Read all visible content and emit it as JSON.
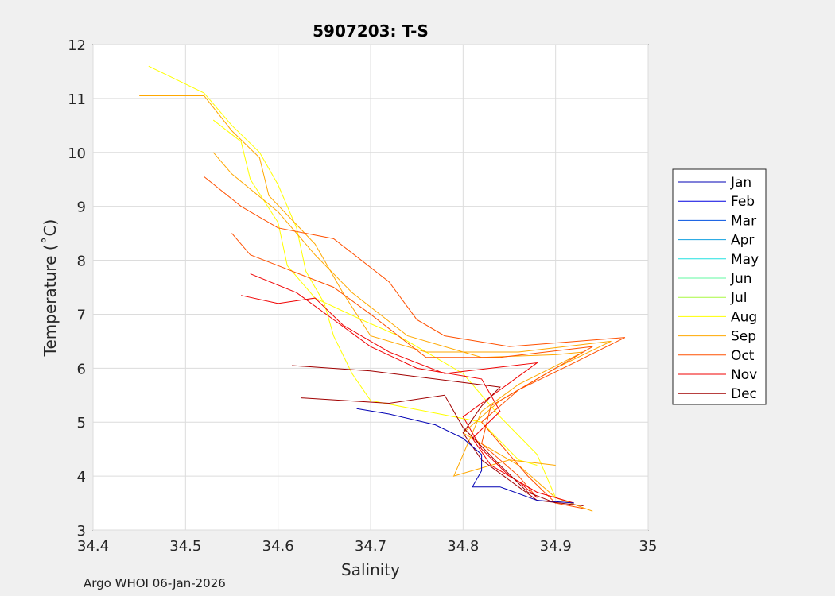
{
  "chart_data": {
    "type": "line",
    "title": "5907203:  T-S",
    "xlabel": "Salinity",
    "ylabel": "Temperature (˚C)",
    "xlim": [
      34.4,
      35
    ],
    "ylim": [
      3,
      12
    ],
    "xticks": [
      "34.4",
      "34.5",
      "34.6",
      "34.7",
      "34.8",
      "34.9",
      "35"
    ],
    "yticks": [
      "3",
      "4",
      "5",
      "6",
      "7",
      "8",
      "9",
      "10",
      "11",
      "12"
    ],
    "grid": true,
    "legend_position": "right",
    "legend": [
      {
        "name": "Jan",
        "color": "#0000b4"
      },
      {
        "name": "Feb",
        "color": "#0000e0"
      },
      {
        "name": "Mar",
        "color": "#0050e0"
      },
      {
        "name": "Apr",
        "color": "#10a0e0"
      },
      {
        "name": "May",
        "color": "#20e0e0"
      },
      {
        "name": "Jun",
        "color": "#60f8a0"
      },
      {
        "name": "Jul",
        "color": "#a8f840"
      },
      {
        "name": "Aug",
        "color": "#ffff00"
      },
      {
        "name": "Sep",
        "color": "#ffa800"
      },
      {
        "name": "Oct",
        "color": "#ff5000"
      },
      {
        "name": "Nov",
        "color": "#f00000"
      },
      {
        "name": "Dec",
        "color": "#a00000"
      }
    ],
    "series": [
      {
        "name": "Aug",
        "color": "#ffff00",
        "points": [
          [
            34.46,
            11.6
          ],
          [
            34.52,
            11.1
          ],
          [
            34.55,
            10.5
          ],
          [
            34.58,
            10.0
          ],
          [
            34.6,
            9.4
          ],
          [
            34.62,
            8.6
          ],
          [
            34.63,
            7.8
          ],
          [
            34.65,
            7.2
          ],
          [
            34.66,
            6.6
          ],
          [
            34.68,
            5.9
          ],
          [
            34.7,
            5.4
          ],
          [
            34.76,
            5.2
          ],
          [
            34.82,
            5.0
          ],
          [
            34.86,
            4.3
          ],
          [
            34.88,
            4.2
          ]
        ]
      },
      {
        "name": "Aug",
        "color": "#ffff00",
        "points": [
          [
            34.53,
            10.6
          ],
          [
            34.56,
            10.2
          ],
          [
            34.57,
            9.5
          ],
          [
            34.6,
            8.7
          ],
          [
            34.61,
            7.9
          ],
          [
            34.64,
            7.3
          ],
          [
            34.69,
            6.9
          ],
          [
            34.73,
            6.6
          ],
          [
            34.8,
            5.9
          ],
          [
            34.84,
            5.1
          ],
          [
            34.88,
            4.4
          ],
          [
            34.9,
            3.6
          ]
        ]
      },
      {
        "name": "Sep",
        "color": "#ffa800",
        "points": [
          [
            34.45,
            11.05
          ],
          [
            34.52,
            11.05
          ],
          [
            34.55,
            10.4
          ],
          [
            34.58,
            9.9
          ],
          [
            34.59,
            9.2
          ],
          [
            34.64,
            8.3
          ],
          [
            34.67,
            7.4
          ],
          [
            34.7,
            6.6
          ],
          [
            34.76,
            6.3
          ],
          [
            34.86,
            6.3
          ],
          [
            34.96,
            6.5
          ],
          [
            34.9,
            6.0
          ],
          [
            34.84,
            5.4
          ],
          [
            34.8,
            4.8
          ],
          [
            34.86,
            4.2
          ],
          [
            34.9,
            3.6
          ],
          [
            34.94,
            3.35
          ]
        ]
      },
      {
        "name": "Sep",
        "color": "#ffa800",
        "points": [
          [
            34.53,
            10.0
          ],
          [
            34.55,
            9.6
          ],
          [
            34.6,
            8.9
          ],
          [
            34.64,
            8.1
          ],
          [
            34.68,
            7.4
          ],
          [
            34.74,
            6.6
          ],
          [
            34.82,
            6.2
          ],
          [
            34.9,
            6.25
          ],
          [
            34.93,
            6.3
          ],
          [
            34.86,
            5.7
          ],
          [
            34.82,
            5.2
          ],
          [
            34.79,
            4.0
          ],
          [
            34.85,
            4.3
          ],
          [
            34.9,
            4.2
          ]
        ]
      },
      {
        "name": "Oct",
        "color": "#ff5000",
        "points": [
          [
            34.52,
            9.55
          ],
          [
            34.56,
            9.0
          ],
          [
            34.6,
            8.6
          ],
          [
            34.66,
            8.4
          ],
          [
            34.72,
            7.6
          ],
          [
            34.75,
            6.9
          ],
          [
            34.78,
            6.6
          ],
          [
            34.85,
            6.4
          ],
          [
            34.975,
            6.57
          ],
          [
            34.92,
            6.1
          ],
          [
            34.86,
            5.6
          ],
          [
            34.82,
            5.0
          ],
          [
            34.84,
            4.6
          ],
          [
            34.87,
            4.0
          ],
          [
            34.9,
            3.5
          ],
          [
            34.93,
            3.4
          ]
        ]
      },
      {
        "name": "Oct",
        "color": "#ff5000",
        "points": [
          [
            34.55,
            8.5
          ],
          [
            34.57,
            8.1
          ],
          [
            34.6,
            7.9
          ],
          [
            34.66,
            7.5
          ],
          [
            34.7,
            7.0
          ],
          [
            34.76,
            6.2
          ],
          [
            34.84,
            6.2
          ],
          [
            34.94,
            6.4
          ],
          [
            34.88,
            5.8
          ],
          [
            34.83,
            5.3
          ],
          [
            34.82,
            4.6
          ],
          [
            34.86,
            4.0
          ],
          [
            34.88,
            3.6
          ]
        ]
      },
      {
        "name": "Nov",
        "color": "#f00000",
        "points": [
          [
            34.56,
            7.35
          ],
          [
            34.6,
            7.2
          ],
          [
            34.64,
            7.3
          ],
          [
            34.67,
            6.8
          ],
          [
            34.72,
            6.3
          ],
          [
            34.78,
            5.9
          ],
          [
            34.88,
            6.1
          ],
          [
            34.84,
            5.6
          ],
          [
            34.8,
            5.1
          ],
          [
            34.82,
            4.5
          ],
          [
            34.85,
            4.0
          ],
          [
            34.88,
            3.7
          ],
          [
            34.92,
            3.5
          ]
        ]
      },
      {
        "name": "Nov",
        "color": "#f00000",
        "points": [
          [
            34.57,
            7.75
          ],
          [
            34.62,
            7.4
          ],
          [
            34.66,
            6.9
          ],
          [
            34.7,
            6.4
          ],
          [
            34.75,
            6.0
          ],
          [
            34.82,
            5.8
          ],
          [
            34.84,
            5.2
          ],
          [
            34.81,
            4.7
          ],
          [
            34.83,
            4.2
          ],
          [
            34.86,
            3.9
          ],
          [
            34.88,
            3.6
          ]
        ]
      },
      {
        "name": "Dec",
        "color": "#a00000",
        "points": [
          [
            34.615,
            6.05
          ],
          [
            34.7,
            5.95
          ],
          [
            34.84,
            5.65
          ],
          [
            34.82,
            5.3
          ],
          [
            34.8,
            4.8
          ],
          [
            34.82,
            4.3
          ],
          [
            34.86,
            3.8
          ],
          [
            34.88,
            3.55
          ],
          [
            34.93,
            3.45
          ]
        ]
      },
      {
        "name": "Dec",
        "color": "#a00000",
        "points": [
          [
            34.625,
            5.45
          ],
          [
            34.72,
            5.35
          ],
          [
            34.78,
            5.5
          ],
          [
            34.8,
            4.9
          ],
          [
            34.84,
            4.2
          ],
          [
            34.87,
            3.7
          ],
          [
            34.9,
            3.5
          ]
        ]
      },
      {
        "name": "Jan",
        "color": "#0000b4",
        "points": [
          [
            34.685,
            5.25
          ],
          [
            34.72,
            5.15
          ],
          [
            34.77,
            4.95
          ],
          [
            34.8,
            4.7
          ],
          [
            34.82,
            4.4
          ],
          [
            34.82,
            4.1
          ],
          [
            34.81,
            3.8
          ],
          [
            34.84,
            3.8
          ],
          [
            34.88,
            3.55
          ],
          [
            34.92,
            3.5
          ]
        ]
      }
    ]
  },
  "footer": "Argo WHOI 06-Jan-2026"
}
